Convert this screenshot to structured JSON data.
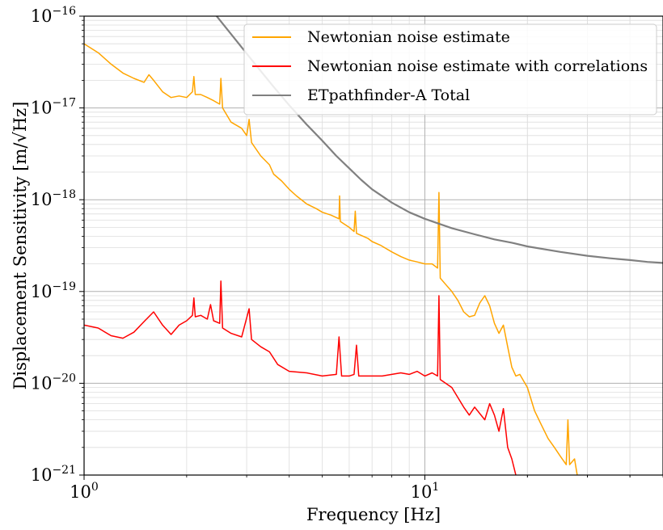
{
  "chart_data": {
    "type": "line",
    "xscale": "log",
    "yscale": "log",
    "xlim": [
      1,
      50
    ],
    "ylim": [
      1e-21,
      1e-16
    ],
    "xlabel": "Frequency [Hz]",
    "ylabel": "Displacement Sensitivity [m/√Hz]",
    "grid": true,
    "legend_position": "upper-right",
    "x_tick_labels": [
      {
        "value": 1,
        "base": "10",
        "exp": "0"
      },
      {
        "value": 10,
        "base": "10",
        "exp": "1"
      }
    ],
    "y_tick_labels": [
      {
        "value": 1e-21,
        "base": "10",
        "exp": "−21"
      },
      {
        "value": 1e-20,
        "base": "10",
        "exp": "−20"
      },
      {
        "value": 1e-19,
        "base": "10",
        "exp": "−19"
      },
      {
        "value": 1e-18,
        "base": "10",
        "exp": "−18"
      },
      {
        "value": 1e-17,
        "base": "10",
        "exp": "−17"
      },
      {
        "value": 1e-16,
        "base": "10",
        "exp": "−16"
      }
    ],
    "series": [
      {
        "name": "Newtonian noise estimate",
        "color": "#ffa500",
        "points": [
          [
            1.0,
            5e-17
          ],
          [
            1.1,
            4e-17
          ],
          [
            1.2,
            3e-17
          ],
          [
            1.3,
            2.4e-17
          ],
          [
            1.4,
            2.1e-17
          ],
          [
            1.5,
            1.9e-17
          ],
          [
            1.55,
            2.3e-17
          ],
          [
            1.6,
            2e-17
          ],
          [
            1.7,
            1.5e-17
          ],
          [
            1.8,
            1.3e-17
          ],
          [
            1.9,
            1.35e-17
          ],
          [
            2.0,
            1.3e-17
          ],
          [
            2.08,
            1.5e-17
          ],
          [
            2.1,
            2.2e-17
          ],
          [
            2.12,
            1.4e-17
          ],
          [
            2.2,
            1.4e-17
          ],
          [
            2.3,
            1.3e-17
          ],
          [
            2.4,
            1.2e-17
          ],
          [
            2.5,
            1.1e-17
          ],
          [
            2.52,
            2.1e-17
          ],
          [
            2.55,
            1e-17
          ],
          [
            2.7,
            7e-18
          ],
          [
            2.9,
            6e-18
          ],
          [
            3.0,
            5e-18
          ],
          [
            3.05,
            7.5e-18
          ],
          [
            3.1,
            4.2e-18
          ],
          [
            3.3,
            3e-18
          ],
          [
            3.5,
            2.4e-18
          ],
          [
            3.6,
            1.9e-18
          ],
          [
            3.8,
            1.6e-18
          ],
          [
            4.0,
            1.3e-18
          ],
          [
            4.2,
            1.1e-18
          ],
          [
            4.5,
            9e-19
          ],
          [
            4.8,
            8e-19
          ],
          [
            5.0,
            7.3e-19
          ],
          [
            5.3,
            6.8e-19
          ],
          [
            5.6,
            6.2e-19
          ],
          [
            5.62,
            1.1e-18
          ],
          [
            5.65,
            5.8e-19
          ],
          [
            6.0,
            5e-19
          ],
          [
            6.2,
            4.5e-19
          ],
          [
            6.25,
            7.5e-19
          ],
          [
            6.3,
            4.3e-19
          ],
          [
            6.8,
            3.8e-19
          ],
          [
            7.0,
            3.5e-19
          ],
          [
            7.4,
            3.2e-19
          ],
          [
            8.0,
            2.7e-19
          ],
          [
            8.5,
            2.4e-19
          ],
          [
            9.0,
            2.2e-19
          ],
          [
            9.5,
            2.1e-19
          ],
          [
            10.0,
            2e-19
          ],
          [
            10.5,
            2e-19
          ],
          [
            10.9,
            1.8e-19
          ],
          [
            11.0,
            1.2e-18
          ],
          [
            11.1,
            1.4e-19
          ],
          [
            11.5,
            1.2e-19
          ],
          [
            12.0,
            1e-19
          ],
          [
            12.5,
            8e-20
          ],
          [
            13.0,
            6e-20
          ],
          [
            13.5,
            5.3e-20
          ],
          [
            14.0,
            5.5e-20
          ],
          [
            14.5,
            7.5e-20
          ],
          [
            15.0,
            9e-20
          ],
          [
            15.5,
            7e-20
          ],
          [
            16.0,
            4.5e-20
          ],
          [
            16.5,
            3.5e-20
          ],
          [
            17.0,
            4.3e-20
          ],
          [
            17.5,
            2.5e-20
          ],
          [
            18.0,
            1.5e-20
          ],
          [
            18.5,
            1.2e-20
          ],
          [
            19.0,
            1.25e-20
          ],
          [
            20.0,
            9e-21
          ],
          [
            21.0,
            5e-21
          ],
          [
            22.0,
            3.5e-21
          ],
          [
            23.0,
            2.5e-21
          ],
          [
            24.0,
            2e-21
          ],
          [
            25.0,
            1.6e-21
          ],
          [
            26.0,
            1.3e-21
          ],
          [
            26.3,
            4e-21
          ],
          [
            26.6,
            1.3e-21
          ],
          [
            27.5,
            1.5e-21
          ],
          [
            28.0,
            1e-21
          ]
        ]
      },
      {
        "name": "Newtonian noise estimate with correlations",
        "color": "#ff0000",
        "points": [
          [
            1.0,
            4.3e-20
          ],
          [
            1.1,
            4e-20
          ],
          [
            1.2,
            3.3e-20
          ],
          [
            1.3,
            3.1e-20
          ],
          [
            1.4,
            3.6e-20
          ],
          [
            1.5,
            4.7e-20
          ],
          [
            1.6,
            6e-20
          ],
          [
            1.7,
            4.3e-20
          ],
          [
            1.8,
            3.4e-20
          ],
          [
            1.9,
            4.3e-20
          ],
          [
            2.0,
            4.8e-20
          ],
          [
            2.08,
            5.5e-20
          ],
          [
            2.1,
            8.5e-20
          ],
          [
            2.12,
            5.3e-20
          ],
          [
            2.2,
            5.5e-20
          ],
          [
            2.3,
            5e-20
          ],
          [
            2.35,
            7.2e-20
          ],
          [
            2.4,
            4.8e-20
          ],
          [
            2.5,
            4.5e-20
          ],
          [
            2.52,
            1.3e-19
          ],
          [
            2.55,
            4e-20
          ],
          [
            2.7,
            3.5e-20
          ],
          [
            2.9,
            3.2e-20
          ],
          [
            3.05,
            6.5e-20
          ],
          [
            3.1,
            3e-20
          ],
          [
            3.3,
            2.5e-20
          ],
          [
            3.5,
            2.2e-20
          ],
          [
            3.7,
            1.6e-20
          ],
          [
            4.0,
            1.35e-20
          ],
          [
            4.5,
            1.3e-20
          ],
          [
            5.0,
            1.2e-20
          ],
          [
            5.5,
            1.25e-20
          ],
          [
            5.6,
            3.2e-20
          ],
          [
            5.7,
            1.2e-20
          ],
          [
            6.0,
            1.2e-20
          ],
          [
            6.2,
            1.25e-20
          ],
          [
            6.3,
            2.6e-20
          ],
          [
            6.4,
            1.2e-20
          ],
          [
            7.0,
            1.2e-20
          ],
          [
            7.5,
            1.2e-20
          ],
          [
            8.0,
            1.25e-20
          ],
          [
            8.5,
            1.3e-20
          ],
          [
            9.0,
            1.25e-20
          ],
          [
            9.5,
            1.35e-20
          ],
          [
            10.0,
            1.2e-20
          ],
          [
            10.5,
            1.3e-20
          ],
          [
            10.9,
            1.2e-20
          ],
          [
            11.0,
            9e-20
          ],
          [
            11.1,
            1.1e-20
          ],
          [
            12.0,
            9e-21
          ],
          [
            13.0,
            5.5e-21
          ],
          [
            13.5,
            4.5e-21
          ],
          [
            14.0,
            5.5e-21
          ],
          [
            15.0,
            4e-21
          ],
          [
            15.5,
            6e-21
          ],
          [
            16.0,
            4.5e-21
          ],
          [
            16.5,
            3e-21
          ],
          [
            17.0,
            5.3e-21
          ],
          [
            17.5,
            2e-21
          ],
          [
            18.0,
            1.5e-21
          ],
          [
            18.5,
            1e-21
          ]
        ]
      },
      {
        "name": "ETpathfinder-A Total",
        "color": "#808080",
        "points": [
          [
            2.4,
            1.1e-16
          ],
          [
            2.8,
            5.4e-17
          ],
          [
            3.2,
            2.9e-17
          ],
          [
            3.6,
            1.7e-17
          ],
          [
            4.0,
            1.07e-17
          ],
          [
            4.5,
            6.6e-18
          ],
          [
            5.0,
            4.4e-18
          ],
          [
            5.5,
            3e-18
          ],
          [
            6.0,
            2.2e-18
          ],
          [
            6.5,
            1.65e-18
          ],
          [
            7.0,
            1.3e-18
          ],
          [
            8.0,
            9.3e-19
          ],
          [
            9.0,
            7.3e-19
          ],
          [
            10.0,
            6.2e-19
          ],
          [
            12.0,
            4.9e-19
          ],
          [
            14.0,
            4.2e-19
          ],
          [
            16.0,
            3.7e-19
          ],
          [
            18.0,
            3.4e-19
          ],
          [
            20.0,
            3.1e-19
          ],
          [
            25.0,
            2.7e-19
          ],
          [
            30.0,
            2.45e-19
          ],
          [
            35.0,
            2.3e-19
          ],
          [
            40.0,
            2.2e-19
          ],
          [
            45.0,
            2.1e-19
          ],
          [
            50.0,
            2.05e-19
          ]
        ]
      }
    ]
  }
}
